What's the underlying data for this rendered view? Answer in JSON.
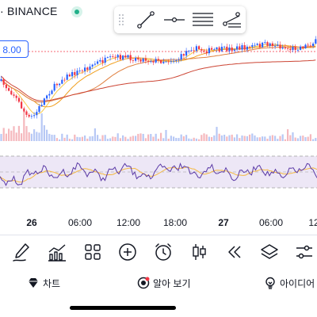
{
  "header": {
    "exchange_label": "· BINANCE",
    "live_indicator_color": "#21b089",
    "price_tag": "8.00"
  },
  "drawing_toolbar": {
    "tools": [
      "grip-icon",
      "trend-line-icon",
      "horizontal-ray-icon",
      "fib-retracement-icon",
      "pitchfork-icon"
    ]
  },
  "chart": {
    "up_color": "#2962ff",
    "down_color": "#f23645",
    "ma_colors": [
      "#f7c948",
      "#f0a020",
      "#e08040",
      "#cc4433"
    ]
  },
  "time_axis": {
    "labels": [
      {
        "text": "26",
        "bold": true
      },
      {
        "text": "06:00",
        "bold": false
      },
      {
        "text": "12:00",
        "bold": false
      },
      {
        "text": "18:00",
        "bold": false
      },
      {
        "text": "27",
        "bold": true
      },
      {
        "text": "06:00",
        "bold": false
      },
      {
        "text": "12",
        "bold": false
      }
    ]
  },
  "toolbar": {
    "tools": [
      "brush-icon",
      "indicators-icon",
      "grid-icon",
      "add-icon",
      "alarm-icon",
      "candles-icon",
      "rewind-icon",
      "layers-icon",
      "settings-sliders-icon"
    ]
  },
  "bottom_tabs": [
    {
      "label": "차트",
      "icon": "gem-icon"
    },
    {
      "label": "알아 보기",
      "icon": "ideas-ball-icon"
    },
    {
      "label": "아이디어",
      "icon": "bulb-icon"
    }
  ]
}
